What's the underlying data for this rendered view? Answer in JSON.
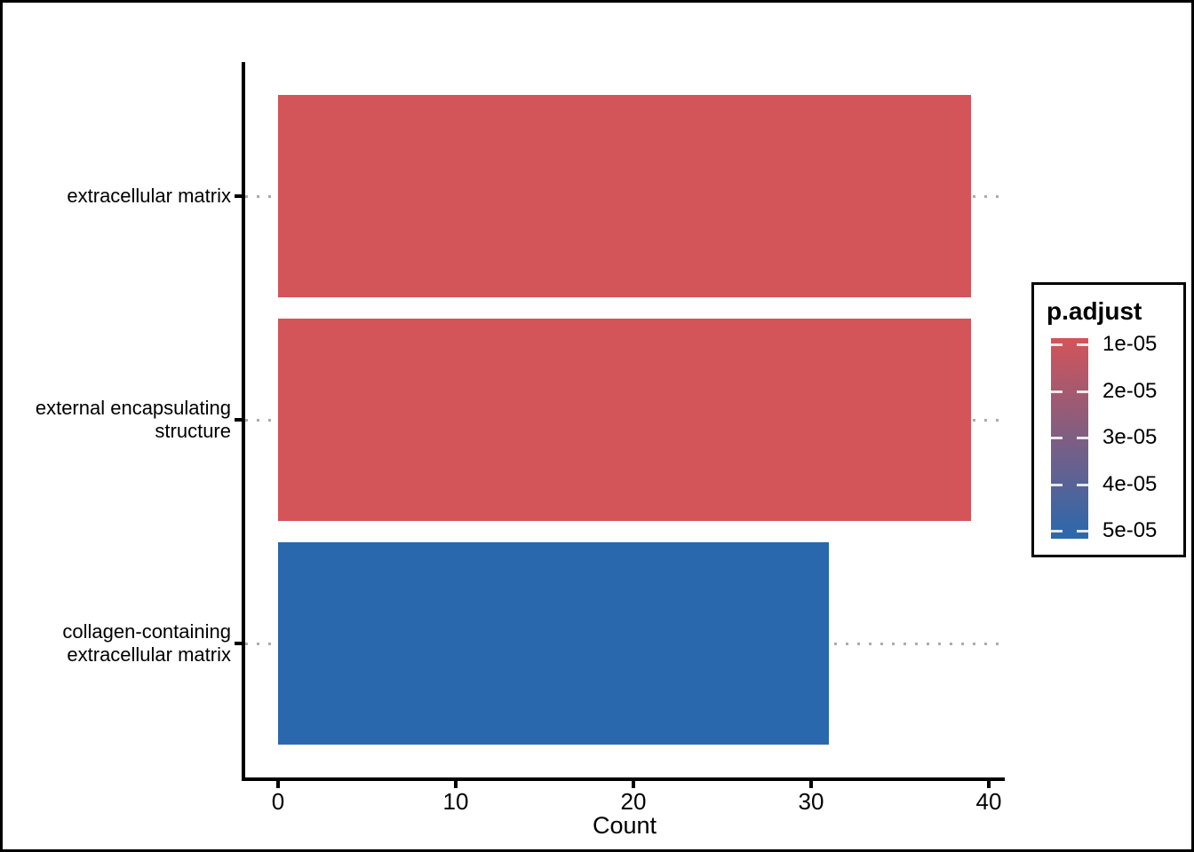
{
  "figure": {
    "background_color": "#FFFFFF",
    "frame_border_color": "#000000"
  },
  "chart_data": {
    "type": "bar",
    "orientation": "horizontal",
    "title": "",
    "xlabel": "Count",
    "ylabel": "",
    "categories": [
      "extracellular matrix",
      "external encapsulating structure",
      "collagen-containing extracellular matrix"
    ],
    "category_lines": [
      [
        "extracellular matrix"
      ],
      [
        "external encapsulating",
        "structure"
      ],
      [
        "collagen-containing",
        "extracellular matrix"
      ]
    ],
    "values": [
      39,
      39,
      31
    ],
    "p_adjust_approx": [
      "1e-05",
      "1e-05",
      "5e-05"
    ],
    "bar_colors": [
      "#D35459",
      "#D35459",
      "#2A68AD"
    ],
    "x_ticks": [
      "0",
      "10",
      "20",
      "30",
      "40"
    ],
    "x_tick_values": [
      0,
      10,
      20,
      30,
      40
    ],
    "xlim": [
      -2,
      41
    ],
    "grid": "dotted-horizontal-at-category-centers",
    "grid_color": "#ABABAB",
    "axis_color": "#000000",
    "legend": {
      "title": "p.adjust",
      "position": "right",
      "tick_labels": [
        "1e-05",
        "2e-05",
        "3e-05",
        "4e-05",
        "5e-05"
      ],
      "gradient_top_color": "#D35459",
      "gradient_bottom_color": "#2A68AD"
    }
  }
}
